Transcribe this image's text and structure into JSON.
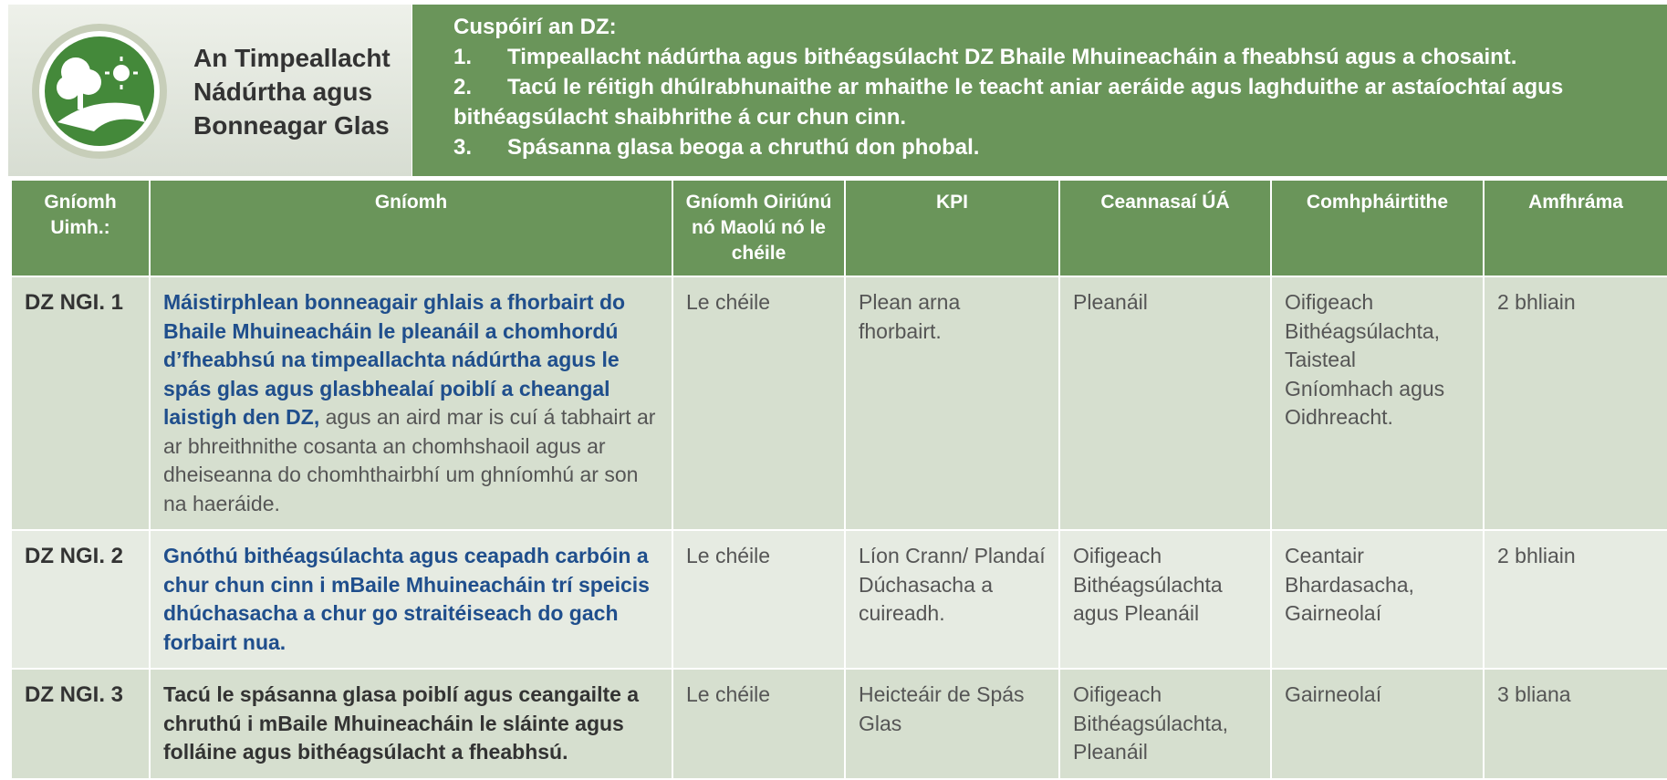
{
  "header": {
    "title_lines": [
      "An Timpeallacht",
      "Nádúrtha agus",
      "Bonneagar Glas"
    ],
    "objectives_title": "Cuspóirí an DZ:",
    "objectives": [
      {
        "number": "1.",
        "text": "Timpeallacht nádúrtha agus bithéagsúlacht DZ Bhaile Mhuineacháin a fheabhsú agus a chosaint."
      },
      {
        "number": "2.",
        "text": "Tacú le réitigh dhúlrabhunaithe ar mhaithe le teacht aniar aeráide agus laghduithe ar astaíochtaí agus bithéagsúlacht shaibhrithe á cur chun cinn."
      },
      {
        "number": "3.",
        "text": "Spásanna glasa beoga a chruthú don phobal."
      }
    ]
  },
  "table": {
    "columns": [
      "Gníomh Uimh.:",
      "Gníomh",
      "Gníomh Oiriúnú nó Maolú nó le chéile",
      "KPI",
      "Ceannasaí ÚÁ",
      "Comhpháirtithe",
      "Amfhráma"
    ],
    "rows": [
      {
        "id": "DZ NGI. 1",
        "action_bold": "Máistirphlean bonneagair ghlais a fhorbairt do Bhaile Mhuineacháin le pleanáil a chomhordú d’fheabhsú na timpeallachta nádúrtha agus le spás glas agus glasbhealaí poiblí a cheangal laistigh den DZ,",
        "action_normal": "agus an aird mar is cuí á tabhairt ar ar bhreithnithe cosanta an chomhshaoil agus ar dheiseanna do chomhthairbhí um ghníomhú ar son na haeráide.",
        "type": "Le chéile",
        "kpi": "Plean arna fhorbairt.",
        "lead": "Pleanáil",
        "partners": "Oifigeach Bithéagsúlachta, Taisteal Gníomhach agus Oidhreacht.",
        "timeframe": "2 bhliain"
      },
      {
        "id": "DZ NGI. 2",
        "action_bold": "Gnóthú bithéagsúlachta agus ceapadh carbóin a chur chun cinn i mBaile Mhuineacháin trí speicis dhúchasacha a chur go straitéiseach do gach forbairt nua.",
        "type": "Le chéile",
        "kpi": "Líon Crann/ Plandaí Dúchasacha a cuireadh.",
        "lead": "Oifigeach Bithéagsúlachta agus Pleanáil",
        "partners": "Ceantair Bhardasacha, Gairneolaí",
        "timeframe": "2 bhliain"
      },
      {
        "id": "DZ NGI. 3",
        "action_bold": "Tacú le spásanna glasa poiblí agus ceangailte a chruthú i mBaile Mhuineacháin le sláinte agus folláine agus bithéagsúlacht a fheabhsú.",
        "type": "Le chéile",
        "kpi": "Heicteáir de Spás Glas",
        "lead": "Oifigeach Bithéagsúlachta, Pleanáil",
        "partners": "Gairneolaí",
        "timeframe": "3 bliana"
      }
    ]
  }
}
